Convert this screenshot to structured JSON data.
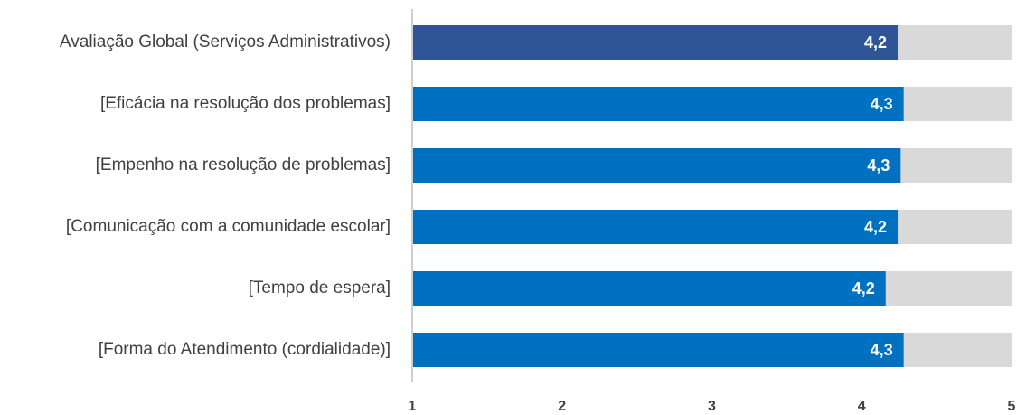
{
  "chart_data": {
    "type": "hbar",
    "categories": [
      "Avaliação Global (Serviços Administrativos)",
      "[Eficácia na resolução dos problemas]",
      "[Empenho na resolução de problemas]",
      "[Comunicação com a comunidade escolar]",
      "[Tempo de espera]",
      "[Forma do Atendimento (cordialidade)]"
    ],
    "values": [
      4.24,
      4.28,
      4.26,
      4.24,
      4.16,
      4.28
    ],
    "value_labels": [
      "4,2",
      "4,3",
      "4,3",
      "4,2",
      "4,2",
      "4,3"
    ],
    "colors": [
      "#2f5597",
      "#0070c0",
      "#0070c0",
      "#0070c0",
      "#0070c0",
      "#0070c0"
    ],
    "track_color": "#d9d9d9",
    "xlim": [
      1,
      5
    ],
    "xticks": [
      1,
      2,
      3,
      4,
      5
    ],
    "grid": false
  }
}
